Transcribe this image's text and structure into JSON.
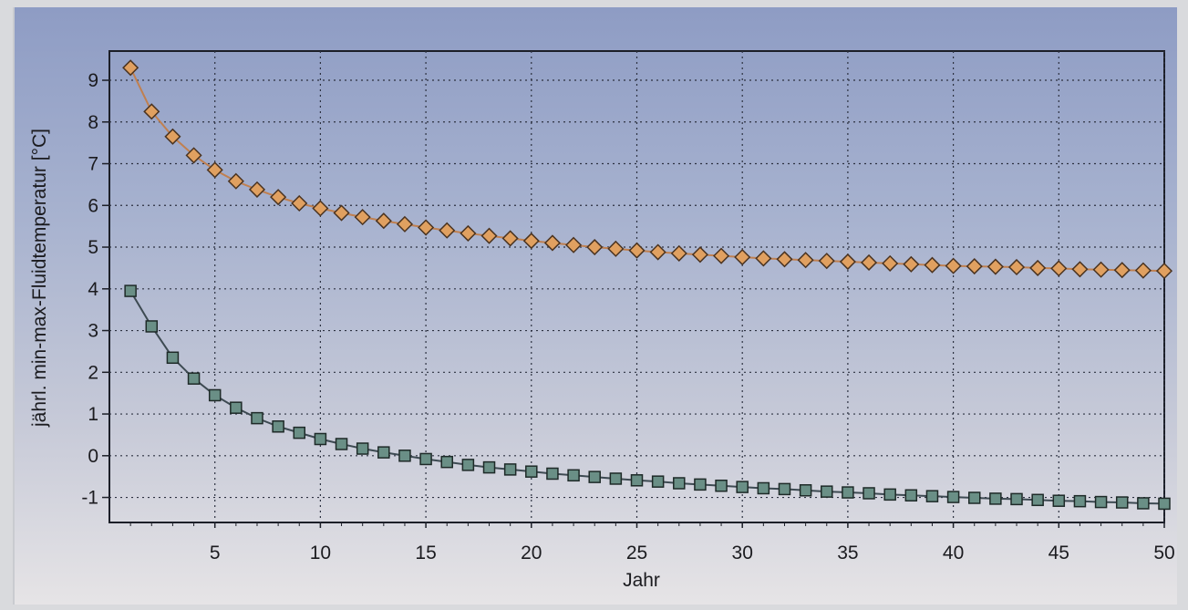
{
  "chart_data": {
    "type": "line",
    "title": "",
    "xlabel": "Jahr",
    "ylabel": "jährl. min-max-Fluidtemperatur [°C]",
    "xlim": [
      0,
      50
    ],
    "ylim": [
      -1.6,
      9.7
    ],
    "xticks": [
      5,
      10,
      15,
      20,
      25,
      30,
      35,
      40,
      45,
      50
    ],
    "yticks": [
      -1,
      0,
      1,
      2,
      3,
      4,
      5,
      6,
      7,
      8,
      9
    ],
    "grid": true,
    "x": [
      1,
      2,
      3,
      4,
      5,
      6,
      7,
      8,
      9,
      10,
      11,
      12,
      13,
      14,
      15,
      16,
      17,
      18,
      19,
      20,
      21,
      22,
      23,
      24,
      25,
      26,
      27,
      28,
      29,
      30,
      31,
      32,
      33,
      34,
      35,
      36,
      37,
      38,
      39,
      40,
      41,
      42,
      43,
      44,
      45,
      46,
      47,
      48,
      49,
      50
    ],
    "series": [
      {
        "marker": "diamond",
        "color": "#e0a060",
        "values": [
          9.3,
          8.25,
          7.65,
          7.2,
          6.85,
          6.58,
          6.38,
          6.2,
          6.05,
          5.93,
          5.82,
          5.72,
          5.63,
          5.55,
          5.47,
          5.4,
          5.33,
          5.27,
          5.21,
          5.15,
          5.1,
          5.05,
          5.0,
          4.96,
          4.92,
          4.88,
          4.85,
          4.82,
          4.79,
          4.76,
          4.73,
          4.71,
          4.69,
          4.67,
          4.65,
          4.63,
          4.61,
          4.59,
          4.57,
          4.55,
          4.54,
          4.53,
          4.52,
          4.5,
          4.49,
          4.47,
          4.46,
          4.45,
          4.44,
          4.43
        ]
      },
      {
        "marker": "square",
        "color": "#6a8f86",
        "values": [
          3.95,
          3.1,
          2.35,
          1.85,
          1.45,
          1.15,
          0.9,
          0.7,
          0.55,
          0.4,
          0.28,
          0.17,
          0.08,
          0.0,
          -0.08,
          -0.15,
          -0.22,
          -0.28,
          -0.33,
          -0.38,
          -0.43,
          -0.47,
          -0.51,
          -0.55,
          -0.59,
          -0.62,
          -0.66,
          -0.69,
          -0.72,
          -0.75,
          -0.78,
          -0.8,
          -0.83,
          -0.86,
          -0.88,
          -0.9,
          -0.93,
          -0.95,
          -0.97,
          -0.99,
          -1.01,
          -1.03,
          -1.04,
          -1.06,
          -1.08,
          -1.09,
          -1.11,
          -1.12,
          -1.14,
          -1.15
        ]
      }
    ]
  }
}
